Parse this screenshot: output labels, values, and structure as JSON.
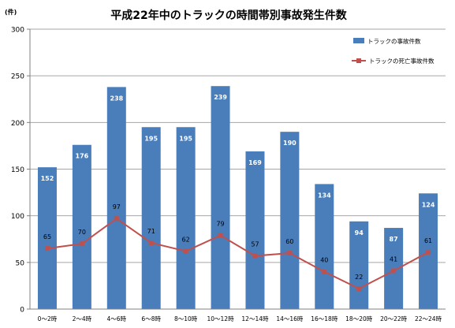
{
  "chart_data": {
    "type": "bar",
    "title": "平成22年中のトラックの時間帯別事故発生件数",
    "unit_label": "(件)",
    "categories": [
      "0～2時",
      "2～4時",
      "4～6時",
      "6～8時",
      "8～10時",
      "10～12時",
      "12～14時",
      "14～16時",
      "16～18時",
      "18～20時",
      "20～22時",
      "22～24時"
    ],
    "ylim": [
      0,
      300
    ],
    "yticks": [
      0,
      50,
      100,
      150,
      200,
      250,
      300
    ],
    "grid": true,
    "legend_position": "top-right",
    "series": [
      {
        "name": "トラックの事故件数",
        "type": "bar",
        "color": "#4a7ebb",
        "values": [
          152,
          176,
          238,
          195,
          195,
          239,
          169,
          190,
          134,
          94,
          87,
          124
        ]
      },
      {
        "name": "トラックの死亡事故件数",
        "type": "line",
        "color": "#c0504d",
        "values": [
          65,
          70,
          97,
          71,
          62,
          79,
          57,
          60,
          40,
          22,
          41,
          61
        ]
      }
    ]
  }
}
